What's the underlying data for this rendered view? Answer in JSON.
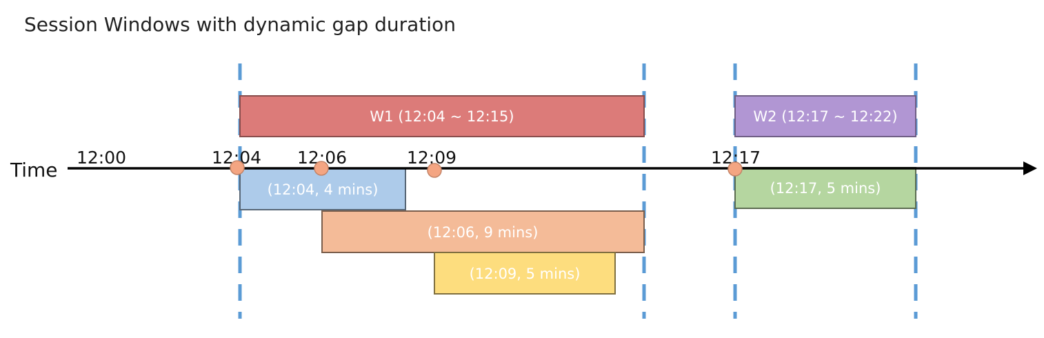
{
  "title": "Session Windows with dynamic gap duration",
  "axis_label": "Time",
  "ticks": [
    "12:00",
    "12:04",
    "12:06",
    "12:09",
    "12:17"
  ],
  "windows": [
    {
      "label": "W1 (12:04 ~ 12:15)",
      "color": "#DC7B79"
    },
    {
      "label": "W2 (12:17 ~ 12:22)",
      "color": "#B196D3"
    }
  ],
  "sessions": [
    {
      "label": "(12:04, 4 mins)",
      "color": "#ADCBEA"
    },
    {
      "label": "(12:06, 9 mins)",
      "color": "#F4BB98"
    },
    {
      "label": "(12:09, 5 mins)",
      "color": "#FDDD7E"
    },
    {
      "label": "(12:17, 5 mins)",
      "color": "#B5D6A0"
    }
  ],
  "colors": {
    "boundary": "#5B9BD5",
    "event_dot": "#F4A582",
    "axis": "#000000"
  }
}
